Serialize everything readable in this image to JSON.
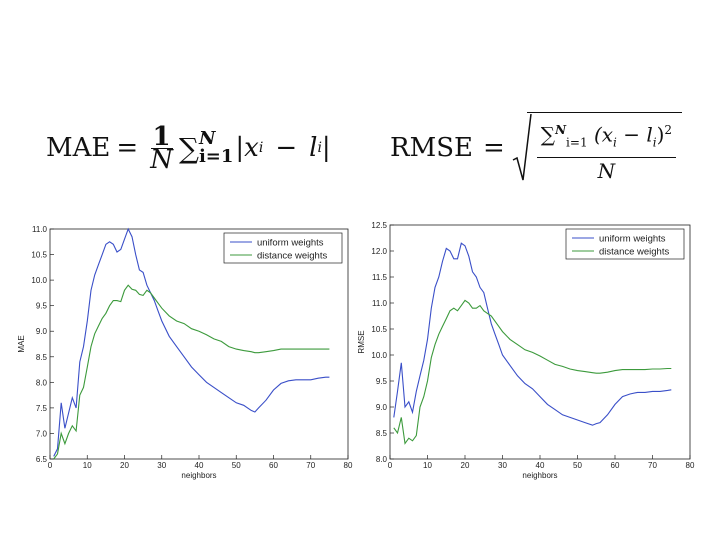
{
  "formulas": {
    "mae": {
      "lhs": "MAE",
      "eq": "=",
      "num": "1",
      "den": "N",
      "sum": "∑",
      "upper": "N",
      "lower": "i=1",
      "body_open": "|",
      "x": "x",
      "xsub": "i",
      "minus": "−",
      "l": "l",
      "lsub": "i",
      "body_close": "|"
    },
    "rmse": {
      "lhs": "RMSE",
      "eq": "=",
      "sum": "∑",
      "upper": "N",
      "lower": "i=1",
      "body": "(x",
      "xsub": "i",
      "minus": " − l",
      "lsub": "i",
      "close": ")",
      "pow": "2",
      "den": "N"
    }
  },
  "chart_data": [
    {
      "type": "line",
      "xlabel": "neighbors",
      "ylabel": "MAE",
      "xlim": [
        0,
        80
      ],
      "ylim": [
        6.5,
        11.0
      ],
      "xticks": [
        0,
        10,
        20,
        30,
        40,
        50,
        60,
        70,
        80
      ],
      "yticks": [
        6.5,
        7.0,
        7.5,
        8.0,
        8.5,
        9.0,
        9.5,
        10.0,
        10.5,
        11.0
      ],
      "ytick_labels": [
        "6.5",
        "7.0",
        "7.5",
        "8.0",
        "8.5",
        "9.0",
        "9.5",
        "10.0",
        "10.5",
        "11.0"
      ],
      "xtick_labels": [
        "0",
        "10",
        "20",
        "30",
        "40",
        "50",
        "60",
        "70",
        "80"
      ],
      "legend": "top-right",
      "series": [
        {
          "name": "uniform weights",
          "color": "#3a4fc8",
          "x": [
            1,
            2,
            3,
            4,
            5,
            6,
            7,
            8,
            9,
            10,
            11,
            12,
            13,
            14,
            15,
            16,
            17,
            18,
            19,
            20,
            21,
            22,
            23,
            24,
            25,
            26,
            27,
            28,
            29,
            30,
            32,
            34,
            36,
            38,
            40,
            42,
            44,
            46,
            48,
            50,
            52,
            54,
            55,
            56,
            58,
            60,
            62,
            64,
            66,
            68,
            70,
            72,
            74,
            75
          ],
          "y": [
            6.55,
            6.7,
            7.6,
            7.1,
            7.4,
            7.7,
            7.5,
            8.4,
            8.7,
            9.2,
            9.8,
            10.1,
            10.3,
            10.5,
            10.7,
            10.75,
            10.7,
            10.55,
            10.6,
            10.8,
            11.0,
            10.85,
            10.5,
            10.2,
            10.15,
            9.9,
            9.75,
            9.6,
            9.4,
            9.2,
            8.9,
            8.7,
            8.5,
            8.3,
            8.15,
            8.0,
            7.9,
            7.8,
            7.7,
            7.6,
            7.55,
            7.45,
            7.42,
            7.5,
            7.65,
            7.85,
            7.98,
            8.03,
            8.05,
            8.05,
            8.05,
            8.08,
            8.1,
            8.1
          ]
        },
        {
          "name": "distance weights",
          "color": "#3c9a3c",
          "x": [
            1,
            2,
            3,
            4,
            5,
            6,
            7,
            8,
            9,
            10,
            11,
            12,
            13,
            14,
            15,
            16,
            17,
            18,
            19,
            20,
            21,
            22,
            23,
            24,
            25,
            26,
            27,
            28,
            29,
            30,
            32,
            34,
            36,
            38,
            40,
            42,
            44,
            46,
            48,
            50,
            52,
            54,
            55,
            56,
            58,
            60,
            62,
            64,
            66,
            68,
            70,
            72,
            74,
            75
          ],
          "y": [
            6.5,
            6.6,
            7.0,
            6.8,
            7.0,
            7.15,
            7.05,
            7.75,
            7.9,
            8.3,
            8.7,
            8.95,
            9.1,
            9.25,
            9.35,
            9.5,
            9.6,
            9.6,
            9.58,
            9.8,
            9.9,
            9.82,
            9.8,
            9.72,
            9.7,
            9.8,
            9.75,
            9.65,
            9.55,
            9.45,
            9.3,
            9.2,
            9.15,
            9.05,
            9.0,
            8.93,
            8.85,
            8.8,
            8.7,
            8.65,
            8.62,
            8.6,
            8.58,
            8.58,
            8.6,
            8.62,
            8.65,
            8.65,
            8.65,
            8.65,
            8.65,
            8.65,
            8.65,
            8.65
          ]
        }
      ]
    },
    {
      "type": "line",
      "xlabel": "neighbors",
      "ylabel": "RMSE",
      "xlim": [
        0,
        80
      ],
      "ylim": [
        8.0,
        12.5
      ],
      "xticks": [
        0,
        10,
        20,
        30,
        40,
        50,
        60,
        70,
        80
      ],
      "yticks": [
        8.0,
        8.5,
        9.0,
        9.5,
        10.0,
        10.5,
        11.0,
        11.5,
        12.0,
        12.5
      ],
      "ytick_labels": [
        "8.0",
        "8.5",
        "9.0",
        "9.5",
        "10.0",
        "10.5",
        "11.0",
        "11.5",
        "12.0",
        "12.5"
      ],
      "xtick_labels": [
        "0",
        "10",
        "20",
        "30",
        "40",
        "50",
        "60",
        "70",
        "80"
      ],
      "legend": "top-right",
      "series": [
        {
          "name": "uniform weights",
          "color": "#3a4fc8",
          "x": [
            1,
            2,
            3,
            4,
            5,
            6,
            7,
            8,
            9,
            10,
            11,
            12,
            13,
            14,
            15,
            16,
            17,
            18,
            19,
            20,
            21,
            22,
            23,
            24,
            25,
            26,
            27,
            28,
            29,
            30,
            32,
            34,
            36,
            38,
            40,
            42,
            44,
            46,
            48,
            50,
            52,
            54,
            55,
            56,
            58,
            60,
            62,
            64,
            66,
            68,
            70,
            72,
            74,
            75
          ],
          "y": [
            8.8,
            9.3,
            9.85,
            9.0,
            9.1,
            8.9,
            9.3,
            9.6,
            9.9,
            10.3,
            10.9,
            11.3,
            11.5,
            11.8,
            12.05,
            12.0,
            11.85,
            11.85,
            12.15,
            12.1,
            11.9,
            11.6,
            11.5,
            11.3,
            11.2,
            10.9,
            10.6,
            10.4,
            10.2,
            10.0,
            9.8,
            9.6,
            9.45,
            9.35,
            9.2,
            9.05,
            8.95,
            8.85,
            8.8,
            8.75,
            8.7,
            8.65,
            8.68,
            8.7,
            8.85,
            9.05,
            9.2,
            9.25,
            9.28,
            9.28,
            9.3,
            9.3,
            9.32,
            9.33
          ]
        },
        {
          "name": "distance weights",
          "color": "#3c9a3c",
          "x": [
            1,
            2,
            3,
            4,
            5,
            6,
            7,
            8,
            9,
            10,
            11,
            12,
            13,
            14,
            15,
            16,
            17,
            18,
            19,
            20,
            21,
            22,
            23,
            24,
            25,
            26,
            27,
            28,
            29,
            30,
            32,
            34,
            36,
            38,
            40,
            42,
            44,
            46,
            48,
            50,
            52,
            54,
            55,
            56,
            58,
            60,
            62,
            64,
            66,
            68,
            70,
            72,
            74,
            75
          ],
          "y": [
            8.6,
            8.5,
            8.8,
            8.3,
            8.4,
            8.35,
            8.45,
            9.0,
            9.2,
            9.5,
            9.95,
            10.2,
            10.4,
            10.55,
            10.7,
            10.85,
            10.9,
            10.85,
            10.95,
            11.05,
            11.0,
            10.9,
            10.9,
            10.95,
            10.85,
            10.8,
            10.75,
            10.65,
            10.55,
            10.45,
            10.3,
            10.2,
            10.1,
            10.05,
            9.98,
            9.9,
            9.82,
            9.78,
            9.73,
            9.7,
            9.68,
            9.66,
            9.65,
            9.65,
            9.67,
            9.7,
            9.72,
            9.72,
            9.72,
            9.72,
            9.73,
            9.73,
            9.74,
            9.74
          ]
        }
      ]
    }
  ]
}
